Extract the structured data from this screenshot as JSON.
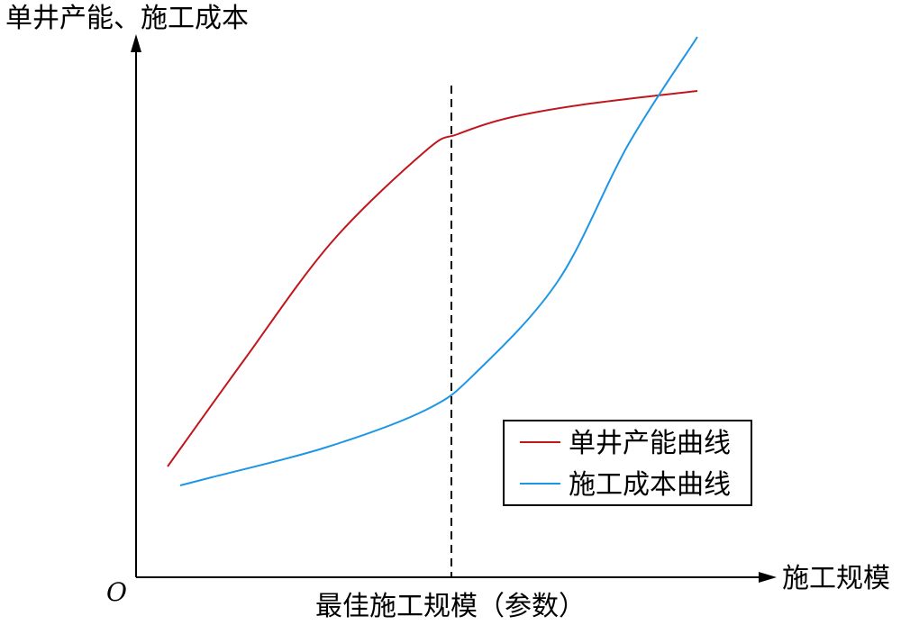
{
  "chart_data": {
    "type": "line",
    "title": "",
    "ylabel": "单井产能、施工成本",
    "xlabel": "施工规模",
    "origin_label": "O",
    "annotation": "最佳施工规模（参数）",
    "xlim": [
      0,
      100
    ],
    "ylim": [
      0,
      100
    ],
    "grid": false,
    "legend_position": "bottom-right",
    "marker_x": 50,
    "series": [
      {
        "name": "单井产能曲线",
        "color": "#c0161e",
        "points": [
          [
            5,
            20.5
          ],
          [
            17,
            40
          ],
          [
            31,
            62
          ],
          [
            46,
            79
          ],
          [
            51,
            82
          ],
          [
            59,
            85
          ],
          [
            71,
            87.5
          ],
          [
            89,
            90
          ]
        ]
      },
      {
        "name": "施工成本曲线",
        "color": "#1e96e6",
        "points": [
          [
            7,
            17
          ],
          [
            12,
            18.5
          ],
          [
            30,
            24
          ],
          [
            46,
            31
          ],
          [
            54,
            38
          ],
          [
            67,
            55
          ],
          [
            78,
            80
          ],
          [
            89,
            100
          ]
        ]
      }
    ]
  }
}
